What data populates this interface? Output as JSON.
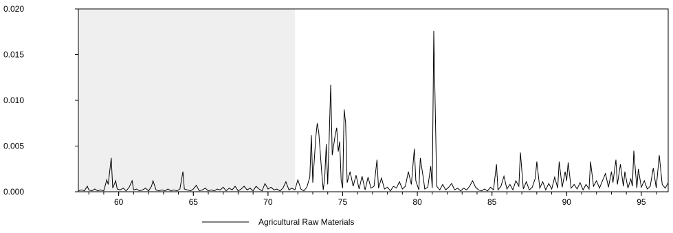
{
  "chart_data": {
    "type": "line",
    "title": "",
    "xlabel": "",
    "ylabel": "",
    "xlim": [
      57.3,
      96.8
    ],
    "ylim": [
      0,
      0.02
    ],
    "x_ticks": [
      60,
      65,
      70,
      75,
      80,
      85,
      90,
      95
    ],
    "y_ticks": [
      "0.000",
      "0.005",
      "0.010",
      "0.015",
      "0.020"
    ],
    "grid": false,
    "shaded_region": {
      "x_start": 57.3,
      "x_end": 71.8,
      "color": "#efefef"
    },
    "legend": {
      "placement": "bottom-center",
      "entries": [
        "Agricultural Raw Materials"
      ]
    },
    "series": [
      {
        "name": "Agricultural Raw Materials",
        "color": "#000000",
        "points": [
          [
            57.3,
            0.0001
          ],
          [
            57.5,
            0.0002
          ],
          [
            57.7,
            0.0001
          ],
          [
            57.9,
            0.0006
          ],
          [
            58.0,
            0.0002
          ],
          [
            58.2,
            0.0001
          ],
          [
            58.4,
            0.0003
          ],
          [
            58.6,
            0.0001
          ],
          [
            58.8,
            0.0002
          ],
          [
            59.0,
            0.0001
          ],
          [
            59.2,
            0.0013
          ],
          [
            59.3,
            0.0008
          ],
          [
            59.5,
            0.0037
          ],
          [
            59.6,
            0.0004
          ],
          [
            59.8,
            0.0012
          ],
          [
            59.9,
            0.0003
          ],
          [
            60.1,
            0.0002
          ],
          [
            60.3,
            0.0004
          ],
          [
            60.5,
            0.0001
          ],
          [
            60.7,
            0.0005
          ],
          [
            60.9,
            0.0012
          ],
          [
            61.0,
            0.0002
          ],
          [
            61.2,
            0.0003
          ],
          [
            61.4,
            0.0001
          ],
          [
            61.6,
            0.0002
          ],
          [
            61.8,
            0.0004
          ],
          [
            62.0,
            0.0001
          ],
          [
            62.2,
            0.0006
          ],
          [
            62.3,
            0.0012
          ],
          [
            62.5,
            0.0002
          ],
          [
            62.7,
            0.0001
          ],
          [
            62.9,
            0.0002
          ],
          [
            63.1,
            0.0001
          ],
          [
            63.3,
            0.0003
          ],
          [
            63.5,
            0.0001
          ],
          [
            63.7,
            0.0002
          ],
          [
            63.9,
            0.0001
          ],
          [
            64.1,
            0.0003
          ],
          [
            64.3,
            0.0022
          ],
          [
            64.4,
            0.0003
          ],
          [
            64.6,
            0.0002
          ],
          [
            64.8,
            0.0001
          ],
          [
            65.0,
            0.0003
          ],
          [
            65.2,
            0.0007
          ],
          [
            65.4,
            0.0001
          ],
          [
            65.6,
            0.0002
          ],
          [
            65.8,
            0.0004
          ],
          [
            66.0,
            0.0001
          ],
          [
            66.2,
            0.0002
          ],
          [
            66.4,
            0.0001
          ],
          [
            66.6,
            0.0003
          ],
          [
            66.8,
            0.0002
          ],
          [
            67.0,
            0.0005
          ],
          [
            67.2,
            0.0001
          ],
          [
            67.4,
            0.0004
          ],
          [
            67.6,
            0.0002
          ],
          [
            67.8,
            0.0006
          ],
          [
            68.0,
            0.0001
          ],
          [
            68.2,
            0.0003
          ],
          [
            68.4,
            0.0006
          ],
          [
            68.6,
            0.0002
          ],
          [
            68.8,
            0.0004
          ],
          [
            69.0,
            0.0001
          ],
          [
            69.2,
            0.0006
          ],
          [
            69.4,
            0.0003
          ],
          [
            69.6,
            0.0001
          ],
          [
            69.8,
            0.0009
          ],
          [
            70.0,
            0.0003
          ],
          [
            70.2,
            0.0005
          ],
          [
            70.4,
            0.0002
          ],
          [
            70.6,
            0.0003
          ],
          [
            70.8,
            0.0001
          ],
          [
            71.0,
            0.0004
          ],
          [
            71.2,
            0.0011
          ],
          [
            71.4,
            0.0002
          ],
          [
            71.6,
            0.0004
          ],
          [
            71.8,
            0.0002
          ],
          [
            72.0,
            0.0013
          ],
          [
            72.2,
            0.0003
          ],
          [
            72.4,
            0.0001
          ],
          [
            72.6,
            0.0005
          ],
          [
            72.8,
            0.0016
          ],
          [
            72.9,
            0.0062
          ],
          [
            73.0,
            0.001
          ],
          [
            73.2,
            0.006
          ],
          [
            73.3,
            0.0075
          ],
          [
            73.4,
            0.0065
          ],
          [
            73.6,
            0.002
          ],
          [
            73.7,
            0.0002
          ],
          [
            73.8,
            0.0016
          ],
          [
            73.9,
            0.0052
          ],
          [
            74.0,
            0.0008
          ],
          [
            74.1,
            0.006
          ],
          [
            74.2,
            0.0117
          ],
          [
            74.3,
            0.004
          ],
          [
            74.5,
            0.0062
          ],
          [
            74.6,
            0.007
          ],
          [
            74.7,
            0.0044
          ],
          [
            74.8,
            0.0055
          ],
          [
            74.9,
            0.0012
          ],
          [
            75.0,
            0.0004
          ],
          [
            75.1,
            0.009
          ],
          [
            75.2,
            0.0075
          ],
          [
            75.3,
            0.001
          ],
          [
            75.5,
            0.0022
          ],
          [
            75.7,
            0.0006
          ],
          [
            75.9,
            0.0018
          ],
          [
            76.1,
            0.0003
          ],
          [
            76.3,
            0.0017
          ],
          [
            76.5,
            0.0002
          ],
          [
            76.7,
            0.0016
          ],
          [
            76.9,
            0.0004
          ],
          [
            77.1,
            0.0006
          ],
          [
            77.3,
            0.0035
          ],
          [
            77.4,
            0.0004
          ],
          [
            77.6,
            0.0015
          ],
          [
            77.8,
            0.0003
          ],
          [
            78.0,
            0.0005
          ],
          [
            78.2,
            0.0001
          ],
          [
            78.4,
            0.0006
          ],
          [
            78.6,
            0.0004
          ],
          [
            78.8,
            0.0011
          ],
          [
            79.0,
            0.0003
          ],
          [
            79.2,
            0.0006
          ],
          [
            79.4,
            0.0022
          ],
          [
            79.6,
            0.0008
          ],
          [
            79.8,
            0.0047
          ],
          [
            79.9,
            0.0012
          ],
          [
            80.1,
            0.0002
          ],
          [
            80.2,
            0.0037
          ],
          [
            80.4,
            0.0015
          ],
          [
            80.5,
            0.0003
          ],
          [
            80.7,
            0.0005
          ],
          [
            80.9,
            0.0028
          ],
          [
            81.0,
            0.0004
          ],
          [
            81.1,
            0.0176
          ],
          [
            81.3,
            0.0006
          ],
          [
            81.5,
            0.0002
          ],
          [
            81.7,
            0.0008
          ],
          [
            81.9,
            0.0002
          ],
          [
            82.1,
            0.0005
          ],
          [
            82.3,
            0.0009
          ],
          [
            82.5,
            0.0002
          ],
          [
            82.7,
            0.0004
          ],
          [
            82.9,
            0.0001
          ],
          [
            83.1,
            0.0004
          ],
          [
            83.3,
            0.0002
          ],
          [
            83.5,
            0.0006
          ],
          [
            83.7,
            0.0012
          ],
          [
            83.9,
            0.0005
          ],
          [
            84.1,
            0.0002
          ],
          [
            84.3,
            0.0001
          ],
          [
            84.5,
            0.0003
          ],
          [
            84.7,
            0.0001
          ],
          [
            84.9,
            0.0005
          ],
          [
            85.1,
            0.0002
          ],
          [
            85.3,
            0.003
          ],
          [
            85.4,
            0.0002
          ],
          [
            85.6,
            0.0006
          ],
          [
            85.8,
            0.0017
          ],
          [
            86.0,
            0.0003
          ],
          [
            86.2,
            0.0008
          ],
          [
            86.4,
            0.0002
          ],
          [
            86.6,
            0.0012
          ],
          [
            86.8,
            0.0006
          ],
          [
            86.9,
            0.0043
          ],
          [
            87.1,
            0.0003
          ],
          [
            87.3,
            0.0011
          ],
          [
            87.5,
            0.0002
          ],
          [
            87.7,
            0.0005
          ],
          [
            87.9,
            0.0015
          ],
          [
            88.0,
            0.0033
          ],
          [
            88.2,
            0.0004
          ],
          [
            88.4,
            0.0011
          ],
          [
            88.6,
            0.0002
          ],
          [
            88.8,
            0.0009
          ],
          [
            89.0,
            0.0003
          ],
          [
            89.2,
            0.0016
          ],
          [
            89.4,
            0.0004
          ],
          [
            89.5,
            0.0033
          ],
          [
            89.7,
            0.0005
          ],
          [
            89.9,
            0.0022
          ],
          [
            90.0,
            0.0012
          ],
          [
            90.1,
            0.0032
          ],
          [
            90.3,
            0.0004
          ],
          [
            90.5,
            0.0008
          ],
          [
            90.7,
            0.0003
          ],
          [
            90.9,
            0.001
          ],
          [
            91.1,
            0.0002
          ],
          [
            91.3,
            0.0008
          ],
          [
            91.5,
            0.0003
          ],
          [
            91.6,
            0.0033
          ],
          [
            91.8,
            0.0006
          ],
          [
            92.0,
            0.0012
          ],
          [
            92.2,
            0.0004
          ],
          [
            92.4,
            0.0012
          ],
          [
            92.6,
            0.002
          ],
          [
            92.8,
            0.0005
          ],
          [
            93.0,
            0.0022
          ],
          [
            93.1,
            0.001
          ],
          [
            93.3,
            0.0035
          ],
          [
            93.4,
            0.0008
          ],
          [
            93.6,
            0.003
          ],
          [
            93.8,
            0.0006
          ],
          [
            93.9,
            0.0022
          ],
          [
            94.1,
            0.0004
          ],
          [
            94.3,
            0.0014
          ],
          [
            94.4,
            0.0006
          ],
          [
            94.5,
            0.0045
          ],
          [
            94.7,
            0.0004
          ],
          [
            94.8,
            0.0025
          ],
          [
            95.0,
            0.0005
          ],
          [
            95.2,
            0.0012
          ],
          [
            95.4,
            0.0003
          ],
          [
            95.6,
            0.0006
          ],
          [
            95.8,
            0.0026
          ],
          [
            96.0,
            0.0004
          ],
          [
            96.2,
            0.004
          ],
          [
            96.4,
            0.0008
          ],
          [
            96.6,
            0.0004
          ],
          [
            96.8,
            0.001
          ]
        ]
      }
    ]
  }
}
